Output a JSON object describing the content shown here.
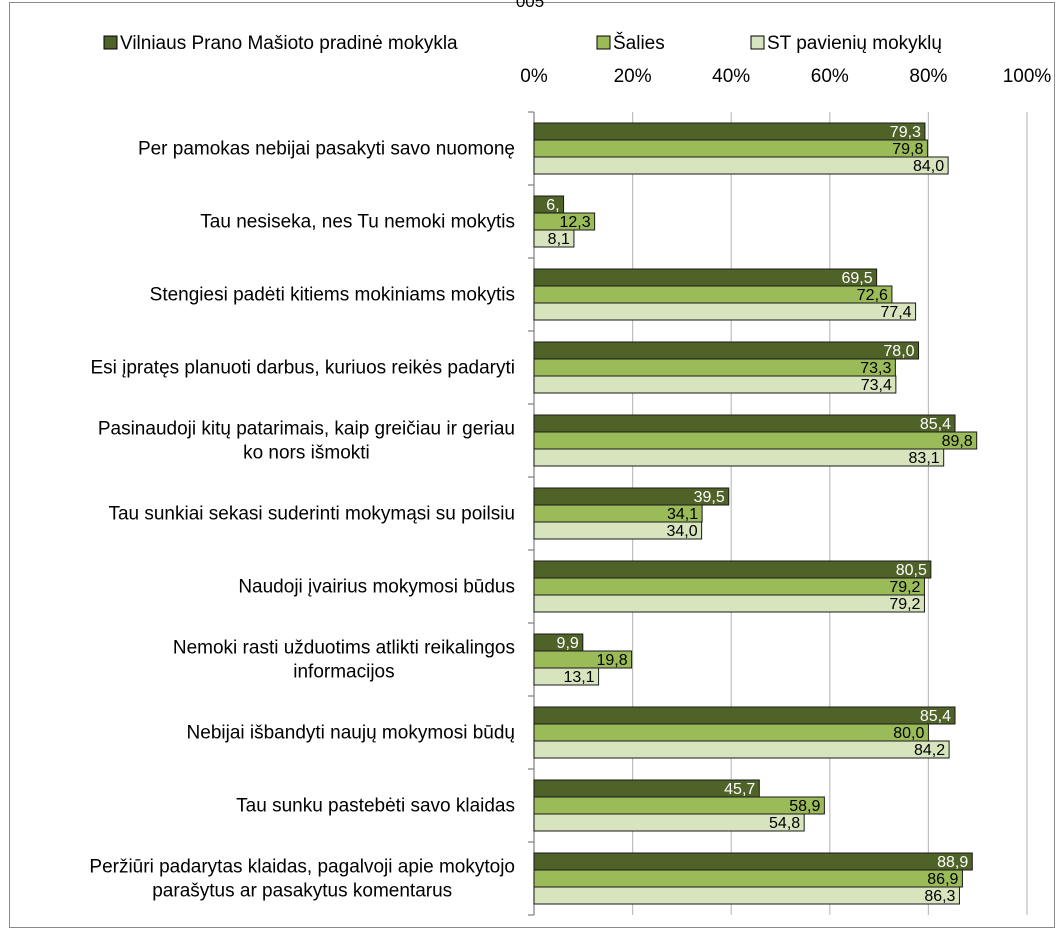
{
  "chart_data": {
    "type": "bar",
    "orientation": "horizontal",
    "top_label_fragment": "005",
    "xlim": [
      0,
      100
    ],
    "x_ticks": [
      "0%",
      "20%",
      "40%",
      "60%",
      "80%",
      "100%"
    ],
    "grid": "vertical",
    "legend": "top",
    "categories": [
      [
        "Per pamokas nebijai pasakyti savo nuomonę"
      ],
      [
        "Tau nesiseka, nes Tu nemoki mokytis"
      ],
      [
        "Stengiesi padėti kitiems mokiniams mokytis"
      ],
      [
        "Esi įpratęs planuoti darbus, kuriuos reikės padaryti"
      ],
      [
        "Pasinaudoji kitų patarimais, kaip greičiau ir geriau",
        "ko nors išmokti"
      ],
      [
        "Tau sunkiai sekasi suderinti mokymąsi su poilsiu"
      ],
      [
        "Naudoji įvairius mokymosi būdus"
      ],
      [
        "Nemoki rasti užduotims atlikti reikalingos",
        "informacijos"
      ],
      [
        "Nebijai išbandyti naujų mokymosi būdų"
      ],
      [
        "Tau sunku pastebėti savo klaidas"
      ],
      [
        "Peržiūri padarytas klaidas, pagalvoji apie mokytojo",
        "parašytus ar pasakytus komentarus"
      ]
    ],
    "series": [
      {
        "name": "Vilniaus Prano Mašioto pradinė mokykla",
        "color": "#4f6228",
        "label_color": "#ffffff",
        "values": [
          79.3,
          6,
          69.5,
          78.0,
          85.4,
          39.5,
          80.5,
          9.9,
          85.4,
          45.7,
          88.9
        ],
        "labels": [
          "79,3",
          "6,",
          "69,5",
          "78,0",
          "85,4",
          "39,5",
          "80,5",
          "9,9",
          "85,4",
          "45,7",
          "88,9"
        ]
      },
      {
        "name": "Šalies",
        "color": "#9bbb59",
        "label_color": "#000000",
        "values": [
          79.8,
          12.3,
          72.6,
          73.3,
          89.8,
          34.1,
          79.2,
          19.8,
          80.0,
          58.9,
          86.9
        ],
        "labels": [
          "79,8",
          "12,3",
          "72,6",
          "73,3",
          "89,8",
          "34,1",
          "79,2",
          "19,8",
          "80,0",
          "58,9",
          "86,9"
        ]
      },
      {
        "name": "ST pavienių mokyklų",
        "color": "#d7e4bd",
        "label_color": "#000000",
        "values": [
          84.0,
          8.1,
          77.4,
          73.4,
          83.1,
          34.0,
          79.2,
          13.1,
          84.2,
          54.8,
          86.3
        ],
        "labels": [
          "84,0",
          "8,1",
          "77,4",
          "73,4",
          "83,1",
          "34,0",
          "79,2",
          "13,1",
          "84,2",
          "54,8",
          "86,3"
        ]
      }
    ]
  }
}
